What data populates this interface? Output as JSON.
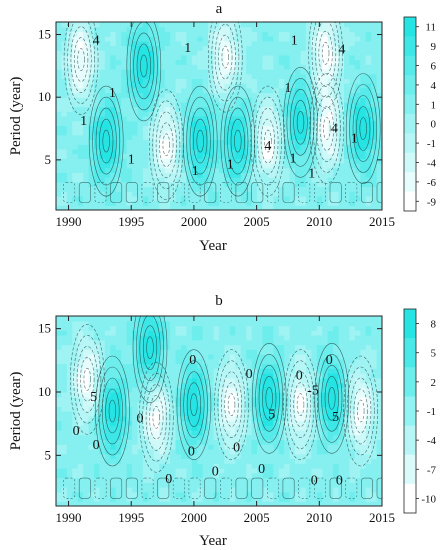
{
  "chart_data": [
    {
      "type": "heatmap",
      "panel_label": "a",
      "xlabel": "Year",
      "ylabel": "Period (year)",
      "xlim": [
        1989,
        2015
      ],
      "ylim": [
        1,
        16
      ],
      "x_ticks": [
        "1990",
        "1995",
        "2000",
        "2005",
        "2010",
        "2015"
      ],
      "y_ticks": [
        "5",
        "10",
        "15"
      ],
      "colorbar_ticks": [
        "11",
        "9",
        "6",
        "4",
        "1",
        "0",
        "-1",
        "-4",
        "-6",
        "-9"
      ],
      "colorbar_range": [
        -9,
        11
      ],
      "contour_labels": [
        {
          "text": "4",
          "x": 1992.2,
          "y": 14.6
        },
        {
          "text": "1",
          "x": 1999.5,
          "y": 14.0
        },
        {
          "text": "1",
          "x": 1993.5,
          "y": 10.4
        },
        {
          "text": "1",
          "x": 1991.2,
          "y": 8.2
        },
        {
          "text": "1",
          "x": 1995.0,
          "y": 5.1
        },
        {
          "text": "1",
          "x": 2000.1,
          "y": 4.2
        },
        {
          "text": "1",
          "x": 2002.9,
          "y": 4.7
        },
        {
          "text": "4",
          "x": 2005.9,
          "y": 6.2
        },
        {
          "text": "1",
          "x": 2007.5,
          "y": 10.8
        },
        {
          "text": "1",
          "x": 2008.0,
          "y": 14.6
        },
        {
          "text": "4",
          "x": 2011.8,
          "y": 13.9
        },
        {
          "text": "4",
          "x": 2011.2,
          "y": 7.6
        },
        {
          "text": "1",
          "x": 2012.8,
          "y": 6.8
        },
        {
          "text": "1",
          "x": 2007.9,
          "y": 5.2
        },
        {
          "text": "1",
          "x": 2009.4,
          "y": 4.0
        }
      ],
      "dominant_bands": [
        {
          "x": 2003.5,
          "y": 6.5,
          "sign": 1
        },
        {
          "x": 2005.9,
          "y": 6.5,
          "sign": -1
        },
        {
          "x": 2008.5,
          "y": 8.0,
          "sign": 1
        },
        {
          "x": 2010.6,
          "y": 7.5,
          "sign": -1
        },
        {
          "x": 2013.5,
          "y": 7.5,
          "sign": 1
        },
        {
          "x": 2000.5,
          "y": 6.5,
          "sign": 1
        },
        {
          "x": 1997.8,
          "y": 6.2,
          "sign": -1
        },
        {
          "x": 1993.0,
          "y": 6.5,
          "sign": 1
        },
        {
          "x": 1996.0,
          "y": 12.5,
          "sign": 1
        },
        {
          "x": 2002.5,
          "y": 13.2,
          "sign": -1
        },
        {
          "x": 2010.5,
          "y": 13.5,
          "sign": -1
        },
        {
          "x": 1991.0,
          "y": 13.0,
          "sign": -1
        }
      ]
    },
    {
      "type": "heatmap",
      "panel_label": "b",
      "xlabel": "Year",
      "ylabel": "Period (year)",
      "xlim": [
        1989,
        2015
      ],
      "ylim": [
        1,
        16
      ],
      "x_ticks": [
        "1990",
        "1995",
        "2000",
        "2005",
        "2010",
        "2015"
      ],
      "y_ticks": [
        "5",
        "10",
        "15"
      ],
      "colorbar_ticks": [
        "8",
        "5",
        "2",
        "-1",
        "-4",
        "-7",
        "-10"
      ],
      "colorbar_range": [
        -10,
        8
      ],
      "contour_labels": [
        {
          "text": "5",
          "x": 1992.0,
          "y": 9.7
        },
        {
          "text": "0",
          "x": 1999.9,
          "y": 12.6
        },
        {
          "text": "0",
          "x": 2004.4,
          "y": 11.5
        },
        {
          "text": "0",
          "x": 2008.4,
          "y": 11.4
        },
        {
          "text": "0",
          "x": 2010.8,
          "y": 12.6
        },
        {
          "text": "5",
          "x": 2006.2,
          "y": 8.3
        },
        {
          "text": "-5",
          "x": 2009.5,
          "y": 10.2
        },
        {
          "text": "5",
          "x": 2011.3,
          "y": 8.1
        },
        {
          "text": "0",
          "x": 1990.6,
          "y": 7.0
        },
        {
          "text": "0",
          "x": 1995.7,
          "y": 8.0
        },
        {
          "text": "0",
          "x": 1992.2,
          "y": 5.9
        },
        {
          "text": "0",
          "x": 1999.8,
          "y": 5.4
        },
        {
          "text": "0",
          "x": 2003.4,
          "y": 5.7
        },
        {
          "text": "0",
          "x": 2005.4,
          "y": 4.0
        },
        {
          "text": "0",
          "x": 1998.0,
          "y": 3.2
        },
        {
          "text": "0",
          "x": 2009.6,
          "y": 3.1
        },
        {
          "text": "0",
          "x": 2011.6,
          "y": 3.1
        },
        {
          "text": "0",
          "x": 2001.7,
          "y": 3.8
        }
      ],
      "dominant_bands": [
        {
          "x": 2006.0,
          "y": 9.5,
          "sign": 1
        },
        {
          "x": 2008.5,
          "y": 9.0,
          "sign": -1
        },
        {
          "x": 2011.0,
          "y": 9.5,
          "sign": 1
        },
        {
          "x": 2013.3,
          "y": 8.5,
          "sign": -1
        },
        {
          "x": 2003.0,
          "y": 9.0,
          "sign": -1
        },
        {
          "x": 2000.0,
          "y": 9.0,
          "sign": 1
        },
        {
          "x": 1997.0,
          "y": 8.0,
          "sign": -1
        },
        {
          "x": 1993.5,
          "y": 8.5,
          "sign": 1
        },
        {
          "x": 1991.5,
          "y": 11.0,
          "sign": -1
        },
        {
          "x": 1996.5,
          "y": 13.5,
          "sign": 1
        }
      ]
    }
  ]
}
